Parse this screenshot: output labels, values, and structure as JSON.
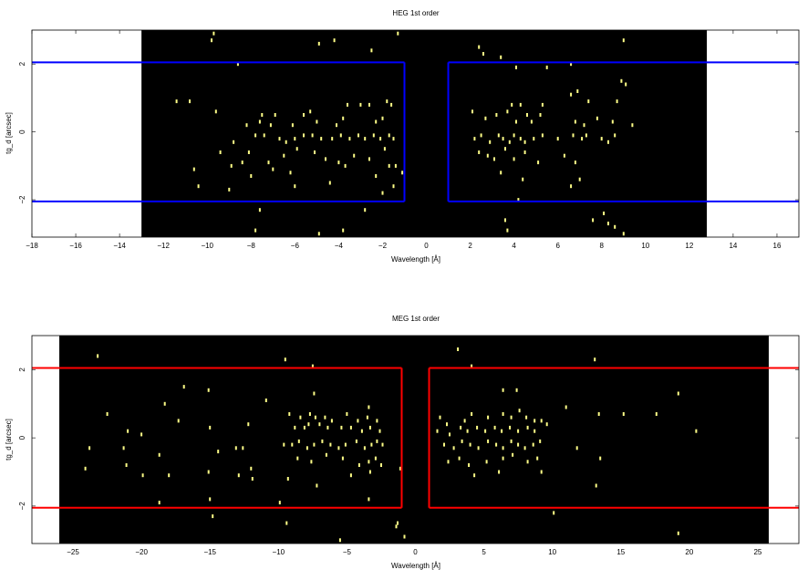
{
  "chart_data": [
    {
      "type": "scatter",
      "title": "HEG 1st order",
      "xlabel": "Wavelength [Å]",
      "ylabel": "tg_d [arcsec]",
      "xlim": [
        -18,
        17
      ],
      "ylim": [
        -3.1,
        3.0
      ],
      "x_ticks": [
        -18,
        -16,
        -14,
        -12,
        -10,
        -8,
        -6,
        -4,
        -2,
        0,
        2,
        4,
        6,
        8,
        10,
        12,
        14,
        16
      ],
      "y_ticks": [
        -2,
        0,
        2
      ],
      "detector_x_range": [
        -13,
        12.8
      ],
      "background_color": "#000000",
      "point_color": "#ffff88",
      "region_color": "#0000ff",
      "regions": [
        {
          "x": [
            -20,
            -1
          ],
          "y": [
            -2.05,
            2.05
          ]
        },
        {
          "x": [
            1,
            20
          ],
          "y": [
            -2.05,
            2.05
          ]
        }
      ],
      "points": [
        [
          -9.7,
          2.9
        ],
        [
          -9.8,
          2.7
        ],
        [
          -8.6,
          2.0
        ],
        [
          -4.2,
          2.7
        ],
        [
          -2.5,
          2.4
        ],
        [
          -1.3,
          2.9
        ],
        [
          -4.9,
          2.6
        ],
        [
          -11.4,
          0.9
        ],
        [
          -10.8,
          0.9
        ],
        [
          -9.6,
          0.6
        ],
        [
          -7.5,
          0.5
        ],
        [
          -6.9,
          0.5
        ],
        [
          -5.6,
          0.5
        ],
        [
          -5.3,
          0.6
        ],
        [
          -3.6,
          0.8
        ],
        [
          -3.0,
          0.8
        ],
        [
          -2.6,
          0.8
        ],
        [
          -1.8,
          0.9
        ],
        [
          -1.6,
          0.8
        ],
        [
          -2.3,
          0.3
        ],
        [
          -2.0,
          0.4
        ],
        [
          -3.8,
          0.4
        ],
        [
          -4.1,
          0.2
        ],
        [
          -5.0,
          0.3
        ],
        [
          -6.1,
          0.2
        ],
        [
          -7.1,
          0.2
        ],
        [
          -7.6,
          0.3
        ],
        [
          -8.2,
          0.2
        ],
        [
          -7.8,
          -0.1
        ],
        [
          -7.4,
          -0.1
        ],
        [
          -6.7,
          -0.2
        ],
        [
          -6.4,
          -0.3
        ],
        [
          -6.0,
          -0.2
        ],
        [
          -5.6,
          -0.1
        ],
        [
          -5.2,
          -0.1
        ],
        [
          -4.8,
          -0.2
        ],
        [
          -4.3,
          -0.2
        ],
        [
          -3.9,
          -0.1
        ],
        [
          -3.5,
          -0.2
        ],
        [
          -3.1,
          -0.1
        ],
        [
          -2.8,
          -0.2
        ],
        [
          -2.4,
          -0.1
        ],
        [
          -2.1,
          -0.2
        ],
        [
          -1.7,
          -0.1
        ],
        [
          -1.5,
          -0.2
        ],
        [
          -8.8,
          -0.3
        ],
        [
          -9.4,
          -0.6
        ],
        [
          -8.1,
          -0.6
        ],
        [
          -7.2,
          -0.9
        ],
        [
          -6.5,
          -0.7
        ],
        [
          -5.9,
          -0.5
        ],
        [
          -5.1,
          -0.6
        ],
        [
          -4.6,
          -0.8
        ],
        [
          -4.0,
          -0.9
        ],
        [
          -3.3,
          -0.7
        ],
        [
          -2.6,
          -0.8
        ],
        [
          -1.9,
          -0.5
        ],
        [
          -1.4,
          -1.0
        ],
        [
          -8.9,
          -1.0
        ],
        [
          -8.4,
          -0.9
        ],
        [
          -7.0,
          -1.1
        ],
        [
          -6.2,
          -1.2
        ],
        [
          -3.7,
          -1.0
        ],
        [
          -2.3,
          -1.3
        ],
        [
          -1.7,
          -1.0
        ],
        [
          -10.6,
          -1.1
        ],
        [
          -10.4,
          -1.6
        ],
        [
          -9.0,
          -1.7
        ],
        [
          -8.0,
          -1.3
        ],
        [
          -6.0,
          -1.6
        ],
        [
          -4.4,
          -1.5
        ],
        [
          -2.0,
          -1.8
        ],
        [
          -1.5,
          -1.6
        ],
        [
          -7.6,
          -2.3
        ],
        [
          -2.8,
          -2.3
        ],
        [
          -3.8,
          -2.9
        ],
        [
          -4.9,
          -3.0
        ],
        [
          -7.8,
          -2.9
        ],
        [
          -1.1,
          -1.2
        ],
        [
          2.4,
          2.5
        ],
        [
          2.6,
          2.3
        ],
        [
          3.4,
          2.2
        ],
        [
          4.1,
          1.9
        ],
        [
          5.5,
          1.9
        ],
        [
          9.0,
          2.7
        ],
        [
          6.6,
          2.0
        ],
        [
          3.9,
          0.8
        ],
        [
          4.3,
          0.8
        ],
        [
          4.6,
          0.5
        ],
        [
          5.3,
          0.8
        ],
        [
          6.9,
          1.2
        ],
        [
          7.4,
          0.9
        ],
        [
          8.7,
          0.9
        ],
        [
          9.1,
          1.4
        ],
        [
          8.9,
          1.5
        ],
        [
          6.6,
          1.1
        ],
        [
          2.1,
          0.6
        ],
        [
          2.7,
          0.4
        ],
        [
          3.2,
          0.5
        ],
        [
          3.7,
          0.6
        ],
        [
          4.1,
          0.3
        ],
        [
          4.8,
          0.3
        ],
        [
          5.2,
          0.5
        ],
        [
          6.8,
          0.3
        ],
        [
          7.2,
          0.2
        ],
        [
          7.8,
          0.4
        ],
        [
          8.5,
          0.3
        ],
        [
          9.4,
          0.2
        ],
        [
          2.2,
          -0.2
        ],
        [
          2.5,
          -0.1
        ],
        [
          2.9,
          -0.3
        ],
        [
          3.3,
          -0.1
        ],
        [
          3.5,
          -0.2
        ],
        [
          3.8,
          -0.3
        ],
        [
          4.0,
          -0.1
        ],
        [
          4.3,
          -0.2
        ],
        [
          4.5,
          -0.3
        ],
        [
          4.9,
          -0.2
        ],
        [
          5.3,
          -0.1
        ],
        [
          6.0,
          -0.2
        ],
        [
          6.7,
          -0.1
        ],
        [
          7.1,
          -0.2
        ],
        [
          7.3,
          -0.1
        ],
        [
          8.0,
          -0.2
        ],
        [
          8.3,
          -0.3
        ],
        [
          8.6,
          -0.1
        ],
        [
          2.4,
          -0.6
        ],
        [
          2.8,
          -0.7
        ],
        [
          3.1,
          -0.8
        ],
        [
          3.6,
          -0.5
        ],
        [
          4.0,
          -0.8
        ],
        [
          4.5,
          -0.6
        ],
        [
          5.1,
          -0.9
        ],
        [
          6.3,
          -0.7
        ],
        [
          6.8,
          -0.9
        ],
        [
          7.0,
          -1.4
        ],
        [
          6.6,
          -1.6
        ],
        [
          3.4,
          -1.2
        ],
        [
          4.4,
          -1.4
        ],
        [
          4.2,
          -2.0
        ],
        [
          3.6,
          -2.6
        ],
        [
          3.7,
          -2.9
        ],
        [
          7.6,
          -2.6
        ],
        [
          8.6,
          -2.8
        ],
        [
          8.3,
          -2.7
        ],
        [
          9.0,
          -3.0
        ],
        [
          8.1,
          -2.4
        ]
      ]
    },
    {
      "type": "scatter",
      "title": "MEG 1st order",
      "xlabel": "Wavelength [Å]",
      "ylabel": "tg_d [arcsec]",
      "xlim": [
        -28,
        28
      ],
      "ylim": [
        -3.1,
        3.0
      ],
      "x_ticks": [
        -25,
        -20,
        -15,
        -10,
        -5,
        0,
        5,
        10,
        15,
        20,
        25
      ],
      "y_ticks": [
        -2,
        0,
        2
      ],
      "detector_x_range": [
        -26,
        25.8
      ],
      "background_color": "#000000",
      "point_color": "#ffff88",
      "region_color": "#ff0000",
      "regions": [
        {
          "x": [
            -30,
            -1
          ],
          "y": [
            -2.05,
            2.05
          ]
        },
        {
          "x": [
            1,
            30
          ],
          "y": [
            -2.05,
            2.05
          ]
        }
      ],
      "points": [
        [
          -23.2,
          2.4
        ],
        [
          -9.5,
          2.3
        ],
        [
          -7.5,
          2.1
        ],
        [
          3.1,
          2.6
        ],
        [
          4.1,
          2.1
        ],
        [
          13.1,
          2.3
        ],
        [
          -16.9,
          1.5
        ],
        [
          -15.1,
          1.4
        ],
        [
          -10.9,
          1.1
        ],
        [
          -7.4,
          1.3
        ],
        [
          -3.4,
          0.9
        ],
        [
          6.4,
          1.4
        ],
        [
          7.4,
          1.4
        ],
        [
          -22.5,
          0.7
        ],
        [
          -17.3,
          0.5
        ],
        [
          -12.2,
          0.4
        ],
        [
          -9.2,
          0.7
        ],
        [
          -8.4,
          0.6
        ],
        [
          -7.7,
          0.7
        ],
        [
          -7.3,
          0.6
        ],
        [
          -6.6,
          0.6
        ],
        [
          -6.1,
          0.5
        ],
        [
          -5.0,
          0.7
        ],
        [
          -4.2,
          0.5
        ],
        [
          -3.5,
          0.6
        ],
        [
          -2.8,
          0.5
        ],
        [
          -8.8,
          0.3
        ],
        [
          -8.1,
          0.3
        ],
        [
          -7.8,
          0.4
        ],
        [
          -7.0,
          0.4
        ],
        [
          -6.4,
          0.3
        ],
        [
          -5.4,
          0.3
        ],
        [
          -4.7,
          0.3
        ],
        [
          -3.9,
          0.2
        ],
        [
          -3.3,
          0.3
        ],
        [
          -2.6,
          0.2
        ],
        [
          -9.6,
          -0.2
        ],
        [
          -9.0,
          -0.2
        ],
        [
          -8.5,
          -0.1
        ],
        [
          -7.9,
          -0.3
        ],
        [
          -7.4,
          -0.2
        ],
        [
          -6.8,
          -0.1
        ],
        [
          -6.2,
          -0.2
        ],
        [
          -5.6,
          -0.3
        ],
        [
          -5.1,
          -0.2
        ],
        [
          -4.3,
          -0.1
        ],
        [
          -3.7,
          -0.3
        ],
        [
          -3.2,
          -0.2
        ],
        [
          -2.8,
          -0.1
        ],
        [
          -2.4,
          -0.2
        ],
        [
          -8.6,
          -0.6
        ],
        [
          -7.6,
          -0.7
        ],
        [
          -6.5,
          -0.5
        ],
        [
          -5.3,
          -0.6
        ],
        [
          -4.1,
          -0.8
        ],
        [
          -3.4,
          -0.7
        ],
        [
          -2.9,
          -0.6
        ],
        [
          -2.5,
          -0.8
        ],
        [
          -12.6,
          -0.3
        ],
        [
          -13.1,
          -0.3
        ],
        [
          -14.4,
          -0.4
        ],
        [
          -18.7,
          -0.5
        ],
        [
          -21.3,
          -0.3
        ],
        [
          -23.8,
          -0.3
        ],
        [
          -24.1,
          -0.9
        ],
        [
          -21.1,
          -0.8
        ],
        [
          -19.9,
          -1.1
        ],
        [
          -18.0,
          -1.1
        ],
        [
          -15.1,
          -1.0
        ],
        [
          -12.9,
          -1.1
        ],
        [
          -11.9,
          -1.2
        ],
        [
          -9.3,
          -1.2
        ],
        [
          -7.2,
          -1.4
        ],
        [
          -4.7,
          -1.1
        ],
        [
          -3.3,
          -1.0
        ],
        [
          -1.1,
          -0.9
        ],
        [
          -15.0,
          -1.8
        ],
        [
          -9.9,
          -1.9
        ],
        [
          -3.4,
          -1.8
        ],
        [
          -20.0,
          0.1
        ],
        [
          -21.0,
          0.2
        ],
        [
          -18.3,
          1.0
        ],
        [
          -15.0,
          0.3
        ],
        [
          -12.0,
          -0.9
        ],
        [
          -14.8,
          -2.3
        ],
        [
          -18.7,
          -1.9
        ],
        [
          -1.3,
          -2.5
        ],
        [
          -1.4,
          -2.6
        ],
        [
          -0.8,
          -2.9
        ],
        [
          -9.4,
          -2.5
        ],
        [
          -5.5,
          -3.0
        ],
        [
          1.8,
          0.6
        ],
        [
          2.3,
          0.4
        ],
        [
          3.6,
          0.5
        ],
        [
          4.1,
          0.7
        ],
        [
          5.3,
          0.6
        ],
        [
          6.4,
          0.7
        ],
        [
          7.0,
          0.6
        ],
        [
          7.6,
          0.8
        ],
        [
          8.1,
          0.6
        ],
        [
          8.7,
          0.5
        ],
        [
          9.2,
          0.5
        ],
        [
          9.6,
          0.4
        ],
        [
          1.6,
          0.2
        ],
        [
          2.5,
          0.1
        ],
        [
          3.3,
          0.3
        ],
        [
          3.8,
          0.2
        ],
        [
          4.5,
          0.3
        ],
        [
          5.1,
          0.2
        ],
        [
          5.8,
          0.3
        ],
        [
          6.3,
          0.2
        ],
        [
          6.9,
          0.3
        ],
        [
          7.5,
          0.2
        ],
        [
          8.2,
          0.3
        ],
        [
          8.7,
          0.2
        ],
        [
          2.1,
          -0.2
        ],
        [
          2.8,
          -0.3
        ],
        [
          3.4,
          -0.1
        ],
        [
          4.0,
          -0.2
        ],
        [
          4.6,
          -0.3
        ],
        [
          5.3,
          -0.1
        ],
        [
          5.9,
          -0.2
        ],
        [
          6.4,
          -0.3
        ],
        [
          7.0,
          -0.1
        ],
        [
          7.5,
          -0.2
        ],
        [
          8.0,
          -0.3
        ],
        [
          8.6,
          -0.2
        ],
        [
          9.1,
          -0.1
        ],
        [
          2.4,
          -0.7
        ],
        [
          3.2,
          -0.6
        ],
        [
          3.9,
          -0.8
        ],
        [
          5.2,
          -0.7
        ],
        [
          6.4,
          -0.6
        ],
        [
          7.1,
          -0.5
        ],
        [
          8.2,
          -0.7
        ],
        [
          8.9,
          -0.6
        ],
        [
          4.3,
          -1.1
        ],
        [
          6.1,
          -1.0
        ],
        [
          9.2,
          -1.0
        ],
        [
          11.0,
          0.9
        ],
        [
          13.4,
          0.7
        ],
        [
          15.2,
          0.7
        ],
        [
          17.6,
          0.7
        ],
        [
          19.2,
          1.3
        ],
        [
          20.5,
          0.2
        ],
        [
          11.8,
          -0.3
        ],
        [
          13.5,
          -0.6
        ],
        [
          13.2,
          -1.4
        ],
        [
          10.1,
          -2.2
        ],
        [
          19.2,
          -2.8
        ]
      ]
    }
  ]
}
